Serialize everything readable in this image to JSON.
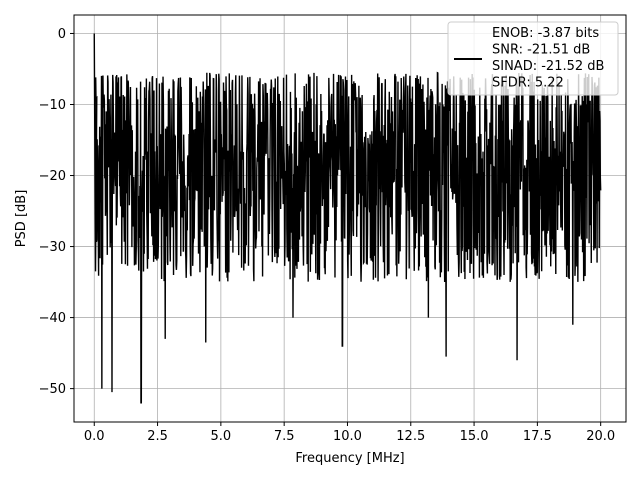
{
  "chart_data": {
    "type": "line",
    "title": "",
    "xlabel": "Frequency [MHz]",
    "ylabel": "PSD [dB]",
    "xlim": [
      -0.8,
      21.0
    ],
    "ylim": [
      -54.7,
      2.6
    ],
    "xticks": [
      0.0,
      2.5,
      5.0,
      7.5,
      10.0,
      12.5,
      15.0,
      17.5,
      20.0
    ],
    "xtick_labels": [
      "0.0",
      "2.5",
      "5.0",
      "7.5",
      "10.0",
      "12.5",
      "15.0",
      "17.5",
      "20.0"
    ],
    "yticks": [
      0,
      -10,
      -20,
      -30,
      -40,
      -50
    ],
    "ytick_labels": [
      "0",
      "−10",
      "−20",
      "−30",
      "−40",
      "−50"
    ],
    "grid": true,
    "legend_position": "top-right",
    "series": [
      {
        "name": "ENOB: -3.87 bits\nSNR: -21.51 dB\nSINAD: -21.52 dB\nSFDR: 5.22",
        "color": "#000000",
        "x_range": [
          0.0,
          20.0
        ],
        "description_points": [
          [
            0.0,
            0.0
          ],
          [
            0.05,
            -33.5
          ],
          [
            0.1,
            -9.0
          ],
          [
            0.15,
            -20.0
          ],
          [
            0.3,
            -50.0
          ],
          [
            0.7,
            -50.5
          ],
          [
            1.85,
            -52.0
          ],
          [
            2.8,
            -43.0
          ],
          [
            4.4,
            -43.5
          ],
          [
            7.85,
            -40.0
          ],
          [
            9.8,
            -44.0
          ],
          [
            13.2,
            -40.0
          ],
          [
            13.9,
            -45.5
          ],
          [
            16.7,
            -46.0
          ],
          [
            18.9,
            -41.0
          ],
          [
            7.3,
            -5.5
          ],
          [
            20.0,
            -22.0
          ]
        ],
        "typical_band": [
          -31.0,
          -8.0
        ],
        "median": -19.0
      }
    ],
    "legend": {
      "lines": [
        "ENOB: -3.87 bits",
        "SNR: -21.51 dB",
        "SINAD: -21.52 dB",
        "SFDR: 5.22"
      ]
    }
  }
}
